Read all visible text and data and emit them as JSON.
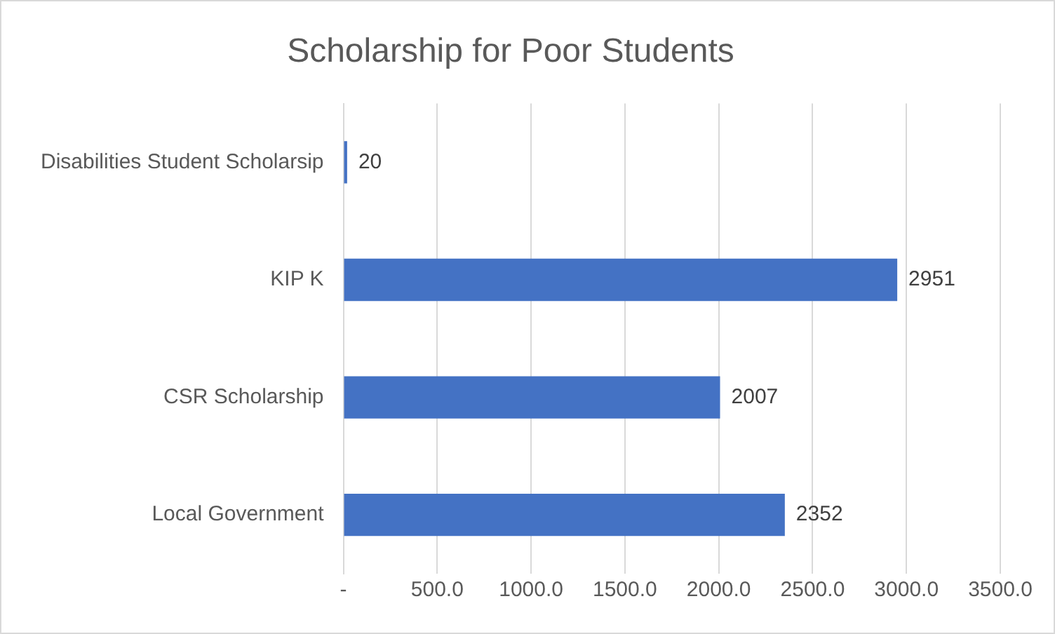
{
  "chart_data": {
    "type": "bar",
    "orientation": "horizontal",
    "title": "Scholarship for Poor Students",
    "categories": [
      "Disabilities Student Scholarsip",
      "KIP K",
      "CSR Scholarship",
      "Local Government"
    ],
    "values": [
      20,
      2951,
      2007,
      2352
    ],
    "color": "#4472c4",
    "xlim": [
      0,
      3500
    ],
    "xticks": [
      {
        "value": 0,
        "label": "-"
      },
      {
        "value": 500,
        "label": "500.0"
      },
      {
        "value": 1000,
        "label": "1000.0"
      },
      {
        "value": 1500,
        "label": "1500.0"
      },
      {
        "value": 2000,
        "label": "2000.0"
      },
      {
        "value": 2500,
        "label": "2500.0"
      },
      {
        "value": 3000,
        "label": "3000.0"
      },
      {
        "value": 3500,
        "label": "3500.0"
      }
    ],
    "grid": "x",
    "legend": false,
    "data_labels": true
  }
}
